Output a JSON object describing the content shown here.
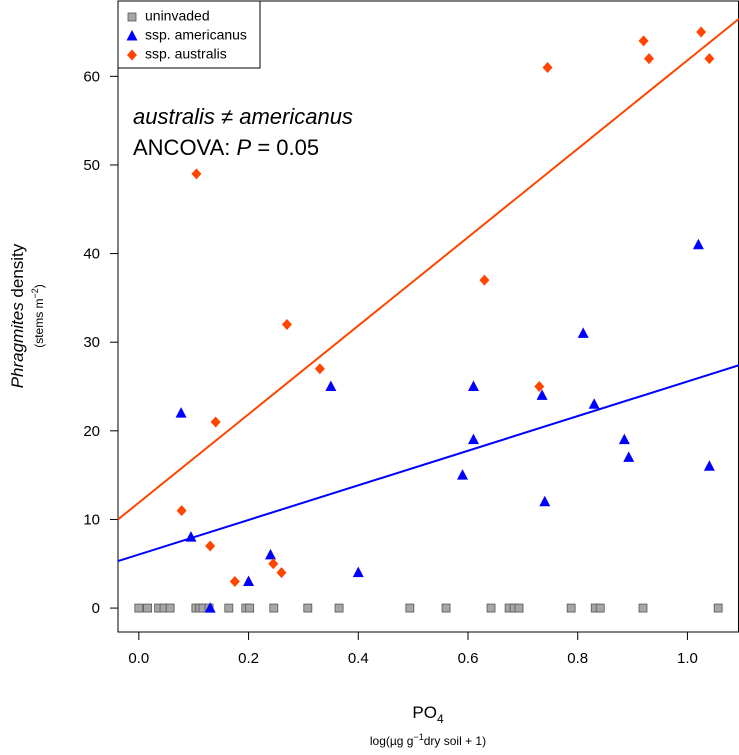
{
  "chart_data": {
    "type": "scatter",
    "y_label": [
      "Phragmites",
      " density"
    ],
    "y_sublabel": [
      "(stems m",
      "−2",
      ")"
    ],
    "x_label": [
      "PO",
      "4"
    ],
    "x_sublabel": [
      "log(µg g",
      "−1",
      "dry soil + 1)"
    ],
    "annotations": [
      [
        "australis ≠ americanus"
      ],
      [
        "ANCOVA: ",
        "P",
        " = 0.05"
      ]
    ],
    "xlim": [
      -0.038,
      1.094
    ],
    "ylim": [
      -2.7,
      68.5
    ],
    "xticks": [
      {
        "value": 0,
        "label": "0.0"
      },
      0.2,
      0.4,
      0.6,
      0.8,
      {
        "value": 1,
        "label": "1.0"
      }
    ],
    "yticks": [
      0,
      10,
      20,
      30,
      40,
      50,
      60
    ],
    "legend": "top-left",
    "series": [
      {
        "name": "uninvaded",
        "color": "#a6a6a6",
        "marker": "square",
        "x": [
          0.0,
          0.016,
          0.036,
          0.046,
          0.057,
          0.104,
          0.111,
          0.117,
          0.128,
          0.164,
          0.195,
          0.202,
          0.246,
          0.308,
          0.365,
          0.494,
          0.56,
          0.642,
          0.675,
          0.684,
          0.693,
          0.788,
          0.832,
          0.841,
          0.919,
          1.056
        ],
        "values": [
          0,
          0,
          0,
          0,
          0,
          0,
          0,
          0,
          0,
          0,
          0,
          0,
          0,
          0,
          0,
          0,
          0,
          0,
          0,
          0,
          0,
          0,
          0,
          0,
          0,
          0
        ]
      },
      {
        "name": "ssp. americanus",
        "color": "#0000ff",
        "marker": "triangle",
        "x": [
          0.077,
          0.095,
          0.13,
          0.2,
          0.24,
          0.35,
          0.4,
          0.59,
          0.61,
          0.61,
          0.735,
          0.74,
          0.81,
          0.83,
          0.885,
          0.893,
          1.02,
          1.04
        ],
        "values": [
          22,
          8,
          0,
          3,
          6,
          25,
          4,
          15,
          25,
          19,
          24,
          12,
          31,
          23,
          19,
          17,
          41,
          16
        ],
        "fit": {
          "x": [
            -0.038,
            1.094
          ],
          "y": [
            5.3,
            27.4
          ]
        }
      },
      {
        "name": "ssp. australis",
        "color": "#ff4500",
        "marker": "diamond",
        "x": [
          0.078,
          0.105,
          0.13,
          0.14,
          0.175,
          0.245,
          0.26,
          0.27,
          0.33,
          0.63,
          0.73,
          0.745,
          0.92,
          0.93,
          1.025,
          1.04
        ],
        "values": [
          11,
          49,
          7,
          21,
          3,
          5,
          4,
          32,
          27,
          37,
          25,
          61,
          64,
          62,
          65,
          62
        ],
        "fit": {
          "x": [
            -0.038,
            1.094
          ],
          "y": [
            10,
            66.5
          ]
        }
      }
    ]
  }
}
